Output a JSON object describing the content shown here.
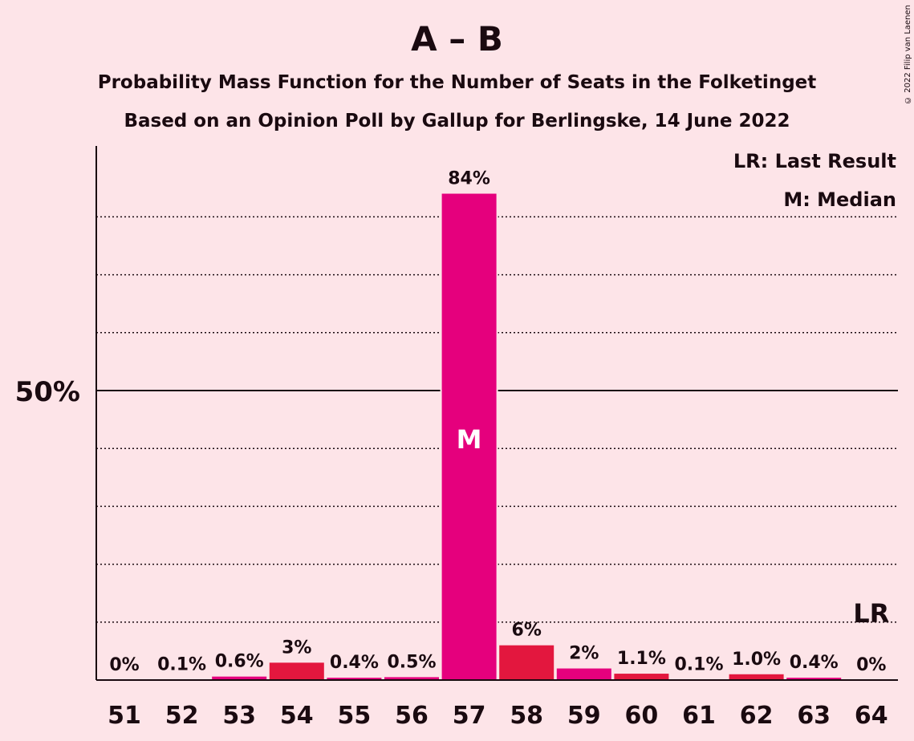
{
  "chart_data": {
    "type": "bar",
    "title": "A – B",
    "subtitle": "Probability Mass Function for the Number of Seats in the Folketinget",
    "subtitle2": "Based on an Opinion Poll by Gallup for Berlingske, 14 June 2022",
    "copyright": "© 2022 Filip van Laenen",
    "categories": [
      "51",
      "52",
      "53",
      "54",
      "55",
      "56",
      "57",
      "58",
      "59",
      "60",
      "61",
      "62",
      "63",
      "64"
    ],
    "values": [
      0,
      0.1,
      0.6,
      3,
      0.4,
      0.5,
      84,
      6,
      2,
      1.1,
      0.1,
      1.0,
      0.4,
      0
    ],
    "value_labels": [
      "0%",
      "0.1%",
      "0.6%",
      "3%",
      "0.4%",
      "0.5%",
      "84%",
      "6%",
      "2%",
      "1.1%",
      "0.1%",
      "1.0%",
      "0.4%",
      "0%"
    ],
    "bar_colors": [
      "#E5007D",
      "#E5007D",
      "#E5007D",
      "#E3173E",
      "#E5007D",
      "#E5007D",
      "#E5007D",
      "#E3173E",
      "#E5007D",
      "#E3173E",
      "#E5007D",
      "#E3173E",
      "#E5007D",
      "#E5007D"
    ],
    "ylim": [
      0,
      92
    ],
    "y_ticks": [
      {
        "value": 50,
        "label": "50%"
      }
    ],
    "gridlines": [
      10,
      20,
      30,
      40,
      60,
      70,
      80
    ],
    "median_category": "57",
    "median_label": "M",
    "last_result_category": "64",
    "last_result_label": "LR",
    "legend": [
      "LR: Last Result",
      "M: Median"
    ],
    "legend_placement": "top-right",
    "colors": {
      "background": "#FDE4E8",
      "axis": "#1a0a10"
    }
  }
}
